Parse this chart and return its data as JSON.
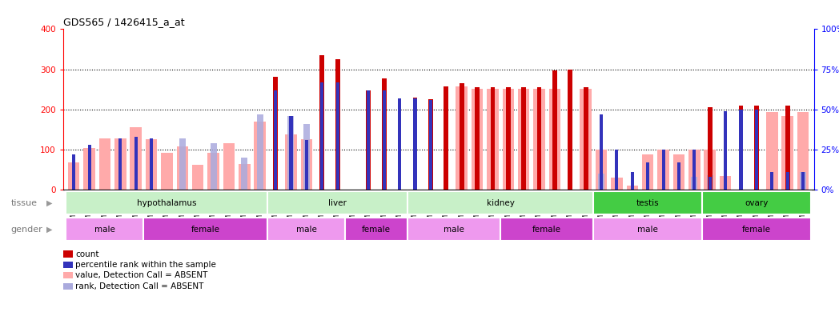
{
  "title": "GDS565 / 1426415_a_at",
  "samples": [
    "GSM19215",
    "GSM19216",
    "GSM19217",
    "GSM19218",
    "GSM19219",
    "GSM19220",
    "GSM19221",
    "GSM19222",
    "GSM19223",
    "GSM19224",
    "GSM19225",
    "GSM19226",
    "GSM19227",
    "GSM19228",
    "GSM19229",
    "GSM19230",
    "GSM19231",
    "GSM19232",
    "GSM19233",
    "GSM19234",
    "GSM19235",
    "GSM19236",
    "GSM19237",
    "GSM19238",
    "GSM19239",
    "GSM19240",
    "GSM19241",
    "GSM19242",
    "GSM19243",
    "GSM19244",
    "GSM19245",
    "GSM19246",
    "GSM19247",
    "GSM19248",
    "GSM19249",
    "GSM19250",
    "GSM19251",
    "GSM19252",
    "GSM19253",
    "GSM19254",
    "GSM19255",
    "GSM19256",
    "GSM19257",
    "GSM19258",
    "GSM19259",
    "GSM19260",
    "GSM19261",
    "GSM19262"
  ],
  "count_values": [
    0,
    0,
    0,
    0,
    0,
    0,
    0,
    0,
    0,
    0,
    0,
    0,
    0,
    282,
    0,
    0,
    335,
    325,
    0,
    248,
    278,
    0,
    230,
    225,
    258,
    265,
    255,
    255,
    255,
    255,
    255,
    298,
    300,
    255,
    0,
    0,
    0,
    0,
    0,
    0,
    0,
    205,
    0,
    210,
    210,
    0,
    210,
    0
  ],
  "rank_values_pct": [
    22,
    28,
    0,
    32,
    33,
    32,
    0,
    0,
    0,
    0,
    0,
    0,
    0,
    62,
    46,
    31,
    67,
    67,
    0,
    62,
    62,
    57,
    57,
    56,
    0,
    0,
    0,
    0,
    0,
    0,
    0,
    0,
    0,
    0,
    47,
    25,
    11,
    17,
    25,
    17,
    25,
    8,
    49,
    50,
    50,
    11,
    11,
    11
  ],
  "absent_value_values": [
    67,
    103,
    127,
    127,
    155,
    126,
    92,
    108,
    62,
    92,
    115,
    63,
    170,
    0,
    138,
    125,
    0,
    0,
    0,
    0,
    0,
    0,
    0,
    0,
    0,
    258,
    252,
    252,
    252,
    252,
    252,
    252,
    0,
    252,
    100,
    30,
    10,
    87,
    100,
    88,
    100,
    100,
    33,
    0,
    0,
    193,
    183,
    193
  ],
  "absent_rank_values_pct": [
    0,
    0,
    0,
    0,
    0,
    0,
    0,
    32,
    0,
    29,
    0,
    20,
    47,
    0,
    46,
    41,
    0,
    0,
    0,
    0,
    0,
    0,
    0,
    0,
    0,
    0,
    0,
    0,
    0,
    0,
    0,
    0,
    0,
    0,
    10,
    0,
    0,
    0,
    0,
    0,
    8,
    9,
    0,
    0,
    0,
    0,
    0,
    11
  ],
  "tissue_groups": [
    {
      "label": "hypothalamus",
      "start": 0,
      "end": 13,
      "color": "#c8f0c8"
    },
    {
      "label": "liver",
      "start": 13,
      "end": 22,
      "color": "#c8f0c8"
    },
    {
      "label": "kidney",
      "start": 22,
      "end": 34,
      "color": "#c8f0c8"
    },
    {
      "label": "testis",
      "start": 34,
      "end": 41,
      "color": "#44cc44"
    },
    {
      "label": "ovary",
      "start": 41,
      "end": 48,
      "color": "#44cc44"
    }
  ],
  "gender_groups": [
    {
      "label": "male",
      "start": 0,
      "end": 5,
      "color": "#ee99ee"
    },
    {
      "label": "female",
      "start": 5,
      "end": 13,
      "color": "#cc44cc"
    },
    {
      "label": "male",
      "start": 13,
      "end": 18,
      "color": "#ee99ee"
    },
    {
      "label": "female",
      "start": 18,
      "end": 22,
      "color": "#cc44cc"
    },
    {
      "label": "male",
      "start": 22,
      "end": 28,
      "color": "#ee99ee"
    },
    {
      "label": "female",
      "start": 28,
      "end": 34,
      "color": "#cc44cc"
    },
    {
      "label": "male",
      "start": 34,
      "end": 41,
      "color": "#ee99ee"
    },
    {
      "label": "female",
      "start": 41,
      "end": 48,
      "color": "#cc44cc"
    }
  ],
  "ylim_left": [
    0,
    400
  ],
  "ylim_right": [
    0,
    100
  ],
  "yticks_left": [
    0,
    100,
    200,
    300,
    400
  ],
  "yticks_right": [
    0,
    25,
    50,
    75,
    100
  ],
  "color_count": "#cc0000",
  "color_rank": "#3333bb",
  "color_absent_value": "#ffaaaa",
  "color_absent_rank": "#aaaadd",
  "bar_width": 0.75,
  "lm": 0.075,
  "pw": 0.895,
  "pb": 0.415,
  "ph": 0.495
}
